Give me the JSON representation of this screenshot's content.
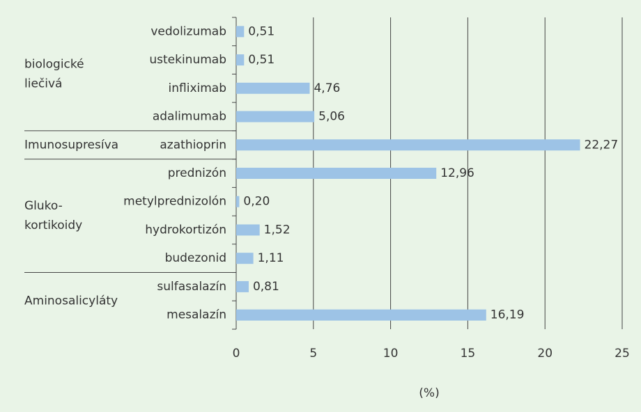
{
  "chart_data": {
    "type": "bar",
    "orientation": "horizontal",
    "color": "#9dc3e6",
    "xlim": [
      0,
      25
    ],
    "xticks": [
      0,
      5,
      10,
      15,
      20,
      25
    ],
    "grid": true,
    "x_label": "(%)",
    "groups": [
      {
        "label": [
          "biologické",
          "liečivá"
        ],
        "categories": [
          "vedolizumab",
          "ustekinumab",
          "infliximab",
          "adalimumab"
        ],
        "values": [
          0.51,
          0.51,
          4.76,
          5.06
        ],
        "value_labels": [
          "0,51",
          "0,51",
          "4,76",
          "5,06"
        ]
      },
      {
        "label": [
          "Imunosupresíva"
        ],
        "categories": [
          "azathioprin"
        ],
        "values": [
          22.27
        ],
        "value_labels": [
          "22,27"
        ]
      },
      {
        "label": [
          "Gluko-",
          "kortikoidy"
        ],
        "categories": [
          "prednizón",
          "metylprednizolón",
          "hydrokortizón",
          "budezonid"
        ],
        "values": [
          12.96,
          0.2,
          1.52,
          1.11
        ],
        "value_labels": [
          "12,96",
          "0,20",
          "1,52",
          "1,11"
        ]
      },
      {
        "label": [
          "Aminosalicyláty"
        ],
        "categories": [
          "sulfasalazín",
          "mesalazín"
        ],
        "values": [
          0.81,
          16.19
        ],
        "value_labels": [
          "0,81",
          "16,19"
        ]
      }
    ]
  }
}
